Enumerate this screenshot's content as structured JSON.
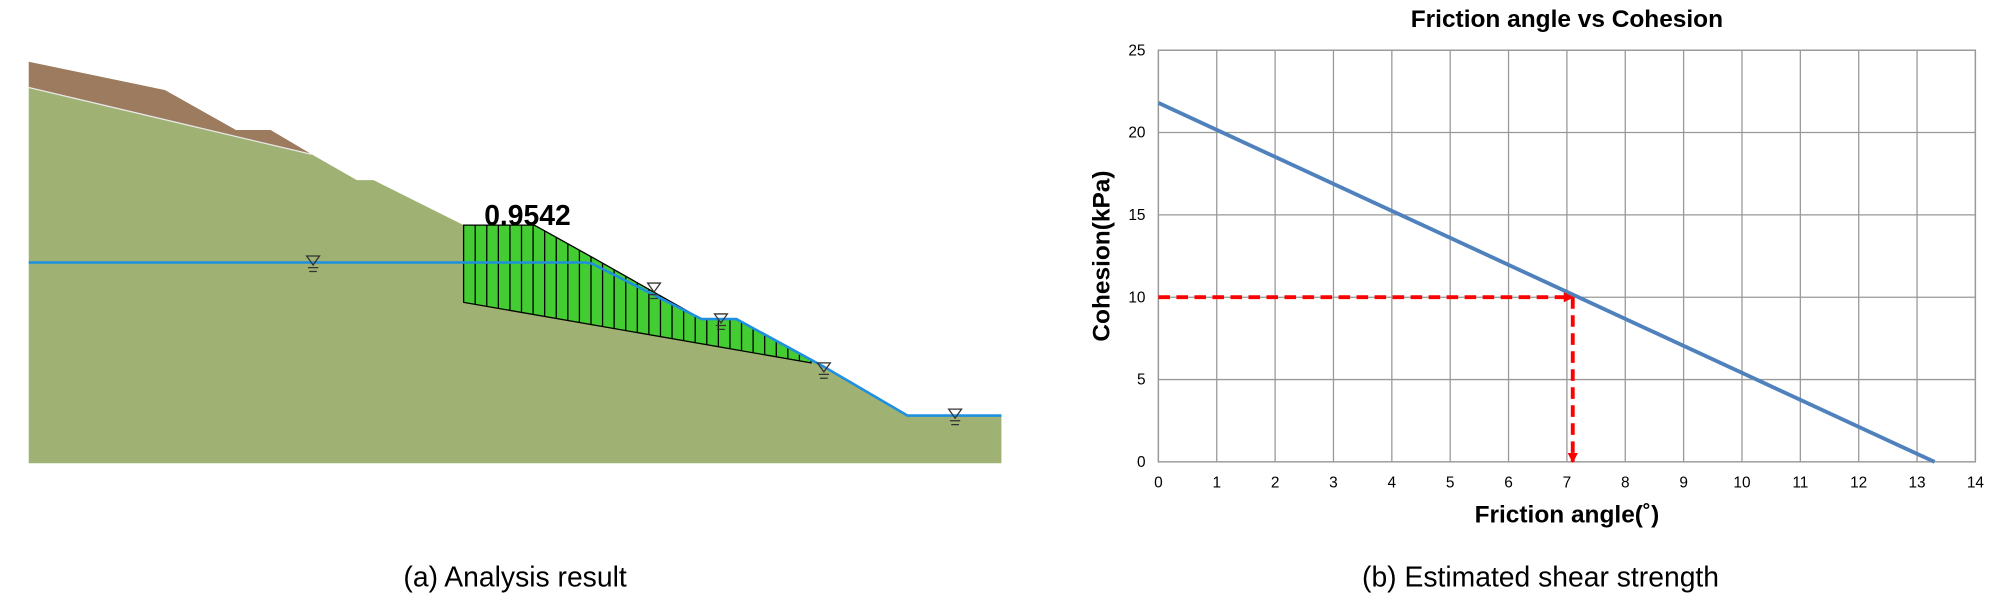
{
  "diagram": {
    "factor_of_safety": 0.9542
  },
  "captions": [
    "(a) Analysis result",
    "(b) Estimated shear strength"
  ],
  "chart_data": {
    "type": "line",
    "title": "Friction angle vs Cohesion",
    "x_label": "Friction angle(˚)",
    "y_label": "Cohesion(kPa)",
    "x": [
      0,
      13.3
    ],
    "series": [
      {
        "name": "Cohesion",
        "color": "#4f81bd",
        "values": [
          21.8,
          0
        ]
      }
    ],
    "xlim": [
      0,
      14
    ],
    "ylim": [
      0,
      25
    ],
    "xticks": [
      0,
      1,
      2,
      3,
      4,
      5,
      6,
      7,
      8,
      9,
      10,
      11,
      12,
      13,
      14
    ],
    "yticks": [
      0,
      5,
      10,
      15,
      20,
      25
    ],
    "grid": true,
    "guide": {
      "x": 7.1,
      "y": 10,
      "color": "#ff0000"
    }
  }
}
